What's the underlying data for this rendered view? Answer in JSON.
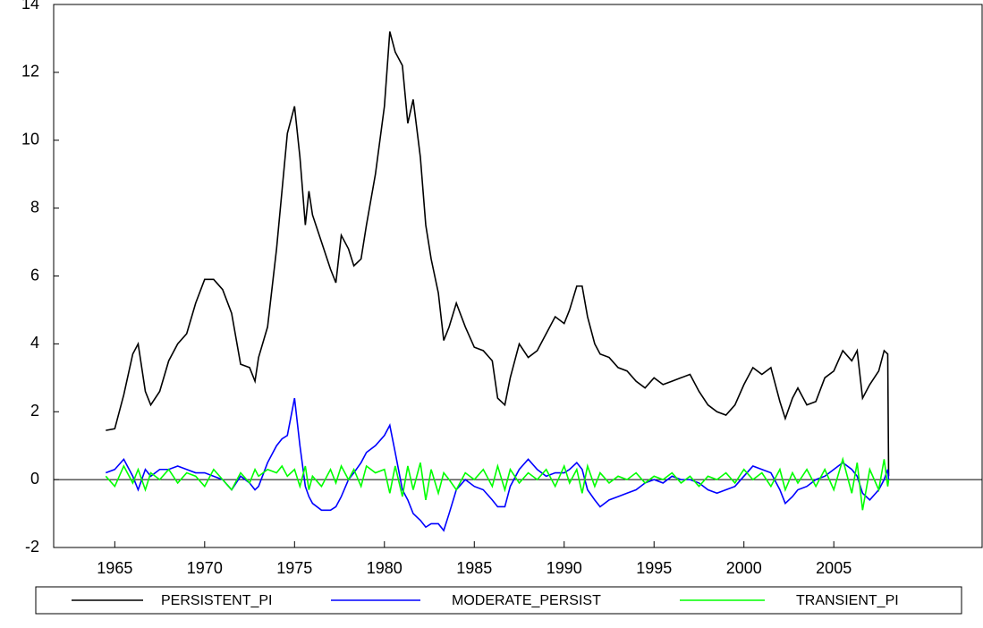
{
  "chart_data": {
    "type": "line",
    "x": [
      1964.5,
      1965,
      1965.5,
      1966,
      1966.3,
      1966.7,
      1967,
      1967.5,
      1968,
      1968.5,
      1969,
      1969.5,
      1970,
      1970.5,
      1971,
      1971.5,
      1972,
      1972.5,
      1972.8,
      1973,
      1973.5,
      1974,
      1974.3,
      1974.6,
      1975,
      1975.3,
      1975.6,
      1975.8,
      1976,
      1976.5,
      1977,
      1977.3,
      1977.6,
      1978,
      1978.3,
      1978.7,
      1979,
      1979.5,
      1980,
      1980.3,
      1980.6,
      1981,
      1981.3,
      1981.6,
      1982,
      1982.3,
      1982.6,
      1983,
      1983.3,
      1983.6,
      1984,
      1984.5,
      1985,
      1985.5,
      1986,
      1986.3,
      1986.7,
      1987,
      1987.5,
      1988,
      1988.5,
      1989,
      1989.5,
      1990,
      1990.3,
      1990.7,
      1991,
      1991.3,
      1991.7,
      1992,
      1992.5,
      1993,
      1993.5,
      1994,
      1994.5,
      1995,
      1995.5,
      1996,
      1996.5,
      1997,
      1997.5,
      1998,
      1998.5,
      1999,
      1999.5,
      2000,
      2000.5,
      2001,
      2001.5,
      2002,
      2002.3,
      2002.7,
      2003,
      2003.5,
      2004,
      2004.5,
      2005,
      2005.5,
      2006,
      2006.3,
      2006.6,
      2007,
      2007.5,
      2007.8,
      2008,
      2008.05
    ],
    "series": [
      {
        "name": "PERSISTENT_PI",
        "color": "#000000",
        "values": [
          1.45,
          1.5,
          2.5,
          3.7,
          4.0,
          2.6,
          2.2,
          2.6,
          3.5,
          4.0,
          4.3,
          5.2,
          5.9,
          5.9,
          5.6,
          4.9,
          3.4,
          3.3,
          2.9,
          3.6,
          4.5,
          6.8,
          8.5,
          10.2,
          11.0,
          9.5,
          7.5,
          8.5,
          7.8,
          7.0,
          6.2,
          5.8,
          7.2,
          6.8,
          6.3,
          6.5,
          7.5,
          9.0,
          11.0,
          13.2,
          12.6,
          12.2,
          10.5,
          11.2,
          9.5,
          7.5,
          6.5,
          5.5,
          4.1,
          4.5,
          5.2,
          4.5,
          3.9,
          3.8,
          3.5,
          2.4,
          2.2,
          3.0,
          4.0,
          3.6,
          3.8,
          4.3,
          4.8,
          4.6,
          5.0,
          5.7,
          5.7,
          4.8,
          4.0,
          3.7,
          3.6,
          3.3,
          3.2,
          2.9,
          2.7,
          3.0,
          2.8,
          2.9,
          3.0,
          3.1,
          2.6,
          2.2,
          2.0,
          1.9,
          2.2,
          2.8,
          3.3,
          3.1,
          3.3,
          2.3,
          1.8,
          2.4,
          2.7,
          2.2,
          2.3,
          3.0,
          3.2,
          3.8,
          3.5,
          3.8,
          2.4,
          2.8,
          3.2,
          3.8,
          3.7,
          0.1
        ]
      },
      {
        "name": "MODERATE_PERSIST",
        "color": "#0000ff",
        "values": [
          0.2,
          0.3,
          0.6,
          0.1,
          -0.3,
          0.3,
          0.1,
          0.3,
          0.3,
          0.4,
          0.3,
          0.2,
          0.2,
          0.1,
          0.0,
          -0.3,
          0.1,
          -0.1,
          -0.3,
          -0.2,
          0.5,
          1.0,
          1.2,
          1.3,
          2.4,
          1.0,
          -0.2,
          -0.5,
          -0.7,
          -0.9,
          -0.9,
          -0.8,
          -0.5,
          0.0,
          0.2,
          0.5,
          0.8,
          1.0,
          1.3,
          1.6,
          0.8,
          -0.3,
          -0.6,
          -1.0,
          -1.2,
          -1.4,
          -1.3,
          -1.3,
          -1.5,
          -1.0,
          -0.3,
          0.0,
          -0.2,
          -0.3,
          -0.6,
          -0.8,
          -0.8,
          -0.2,
          0.3,
          0.6,
          0.3,
          0.1,
          0.2,
          0.2,
          0.3,
          0.5,
          0.3,
          -0.3,
          -0.6,
          -0.8,
          -0.6,
          -0.5,
          -0.4,
          -0.3,
          -0.1,
          0.0,
          -0.1,
          0.1,
          0.0,
          0.0,
          -0.1,
          -0.3,
          -0.4,
          -0.3,
          -0.2,
          0.1,
          0.4,
          0.3,
          0.2,
          -0.3,
          -0.7,
          -0.5,
          -0.3,
          -0.2,
          0.0,
          0.1,
          0.3,
          0.5,
          0.3,
          0.1,
          -0.4,
          -0.6,
          -0.3,
          0.0,
          0.3,
          0.0
        ]
      },
      {
        "name": "TRANSIENT_PI",
        "color": "#00ff00",
        "values": [
          0.1,
          -0.2,
          0.4,
          -0.1,
          0.3,
          -0.3,
          0.2,
          0.0,
          0.3,
          -0.1,
          0.2,
          0.1,
          -0.2,
          0.3,
          0.0,
          -0.3,
          0.2,
          -0.1,
          0.3,
          0.1,
          0.3,
          0.2,
          0.4,
          0.1,
          0.3,
          -0.2,
          0.4,
          -0.3,
          0.1,
          -0.2,
          0.3,
          -0.1,
          0.4,
          0.0,
          0.3,
          -0.2,
          0.4,
          0.2,
          0.3,
          -0.4,
          0.4,
          -0.5,
          0.4,
          -0.3,
          0.5,
          -0.6,
          0.3,
          -0.4,
          0.2,
          0.0,
          -0.3,
          0.2,
          0.0,
          0.3,
          -0.2,
          0.4,
          -0.3,
          0.3,
          -0.1,
          0.2,
          0.0,
          0.3,
          -0.2,
          0.4,
          -0.1,
          0.3,
          -0.4,
          0.4,
          -0.2,
          0.2,
          -0.1,
          0.1,
          0.0,
          0.2,
          -0.1,
          0.1,
          0.0,
          0.2,
          -0.1,
          0.1,
          -0.2,
          0.1,
          0.0,
          0.2,
          -0.1,
          0.3,
          0.0,
          0.2,
          -0.2,
          0.3,
          -0.3,
          0.2,
          -0.1,
          0.3,
          -0.2,
          0.3,
          -0.3,
          0.6,
          -0.4,
          0.5,
          -0.9,
          0.3,
          -0.3,
          0.6,
          -0.2,
          0.0
        ]
      }
    ],
    "xlim": [
      1961.6,
      2013.25
    ],
    "xticks": [
      1965,
      1970,
      1975,
      1980,
      1985,
      1990,
      1995,
      2000,
      2005
    ],
    "ylim": [
      -2,
      14
    ],
    "yticks": [
      -2,
      0,
      2,
      4,
      6,
      8,
      10,
      12,
      14
    ],
    "zero_line": true,
    "legend": "bottom"
  }
}
